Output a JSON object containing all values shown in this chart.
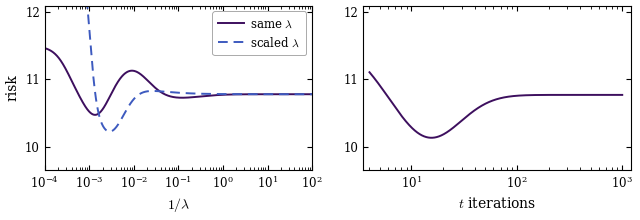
{
  "fig_width": 6.4,
  "fig_height": 2.2,
  "dpi": 100,
  "left_xlim": [
    0.0001,
    100.0
  ],
  "left_ylim": [
    9.65,
    12.1
  ],
  "left_yticks": [
    10,
    11,
    12
  ],
  "right_xlim": [
    3.5,
    1200
  ],
  "right_ylim": [
    9.65,
    12.1
  ],
  "right_yticks": [
    10,
    11,
    12
  ],
  "color_solid": "#3d0f5e",
  "color_dashed": "#3d5abf",
  "line_width": 1.4,
  "legend_fontsize": 8.5,
  "axis_fontsize": 10
}
